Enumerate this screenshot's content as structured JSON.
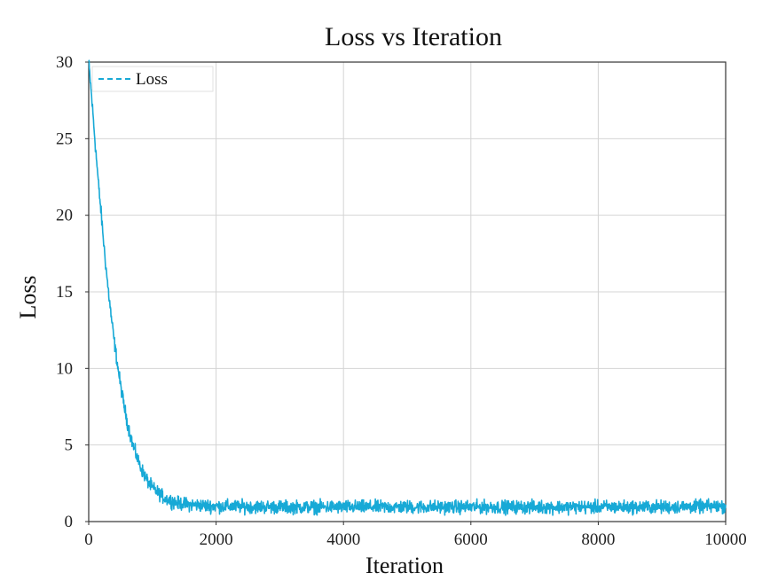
{
  "chart_data": {
    "type": "line",
    "title": "Loss vs Iteration",
    "xlabel": "Iteration",
    "ylabel": "Loss",
    "xlim": [
      0,
      10000
    ],
    "ylim": [
      0,
      30
    ],
    "xticks": [
      0,
      2000,
      4000,
      6000,
      8000,
      10000
    ],
    "yticks": [
      0,
      5,
      10,
      15,
      20,
      25,
      30
    ],
    "grid": true,
    "legend_position": "top-left",
    "series": [
      {
        "name": "Loss",
        "color": "#17a9d6",
        "line_style": "dashed",
        "noise_amplitude": 0.35,
        "x": [
          0,
          50,
          100,
          150,
          200,
          250,
          300,
          350,
          400,
          450,
          500,
          550,
          600,
          650,
          700,
          800,
          900,
          1000,
          1200,
          1400,
          1600,
          2000,
          3000,
          4000,
          5000,
          6000,
          7000,
          8000,
          9000,
          10000
        ],
        "values": [
          30,
          27.5,
          24.8,
          22.2,
          19.9,
          17.5,
          15.4,
          13.5,
          11.8,
          10.3,
          8.9,
          7.7,
          6.6,
          5.7,
          4.9,
          3.7,
          2.8,
          2.2,
          1.5,
          1.2,
          1.1,
          1.0,
          0.95,
          0.95,
          0.95,
          0.95,
          0.95,
          0.95,
          0.95,
          1.0
        ]
      }
    ]
  }
}
